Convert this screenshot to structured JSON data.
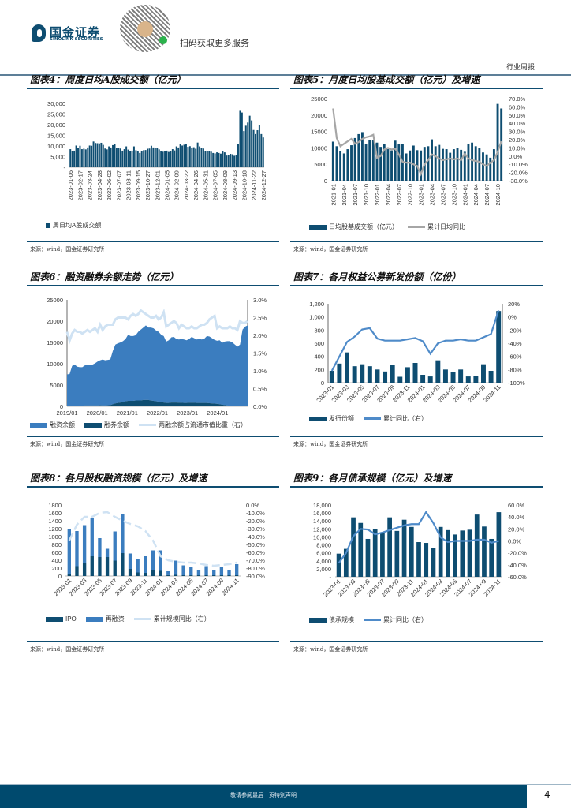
{
  "header": {
    "logo_cn": "国金证券",
    "logo_en": "SINOLINK SECURITIES",
    "qr_caption": "扫码获取更多服务",
    "report_type": "行业周报"
  },
  "footer": {
    "disclaimer": "敬请参阅最后一页特别声明",
    "page": "4"
  },
  "colors": {
    "dark_blue": "#0e4d71",
    "mid_blue": "#3b7dbf",
    "light_blue": "#cfe2f3",
    "grey": "#a6a6a6",
    "line_blue": "#4f8bc9"
  },
  "chart_data": [
    {
      "id": "fig4",
      "title": "图表4：周度日均A股成交额（亿元）",
      "source": "来源：wind，国金证券研究所",
      "type": "bar",
      "y_ticks": [
        "-",
        "5,000",
        "10,000",
        "15,000",
        "20,000",
        "25,000",
        "30,000"
      ],
      "ylim": [
        0,
        30000
      ],
      "x_tick_labels": [
        "2023-01-06",
        "2023-02-17",
        "2023-03-24",
        "2023-04-28",
        "2023-06-02",
        "2023-07-07",
        "2023-08-11",
        "2023-09-15",
        "2023-10-27",
        "2023-12-01",
        "2024-01-05",
        "2024-02-09",
        "2024-03-22",
        "2024-04-26",
        "2024-05-31",
        "2024-07-05",
        "2024-08-09",
        "2024-09-13",
        "2024-10-18",
        "2024-11-22",
        "2024-12-27"
      ],
      "series": [
        {
          "name": "周日均A股成交额",
          "values": [
            8500,
            7600,
            7800,
            10200,
            8900,
            10100,
            8500,
            8700,
            8400,
            9300,
            10200,
            10100,
            12100,
            11400,
            11300,
            11200,
            11500,
            10500,
            8800,
            8400,
            9800,
            9300,
            10400,
            10800,
            9200,
            9100,
            8800,
            7800,
            8500,
            9800,
            8300,
            7500,
            7800,
            9800,
            8000,
            7400,
            6700,
            7500,
            8000,
            8100,
            8700,
            8800,
            10100,
            9300,
            9000,
            8900,
            8400,
            7600,
            7300,
            7500,
            7800,
            7200,
            7500,
            8500,
            7900,
            9800,
            9300,
            11000,
            10200,
            10600,
            11100,
            9600,
            9900,
            8900,
            9400,
            8700,
            11600,
            9800,
            9100,
            8800,
            7500,
            7600,
            7700,
            7300,
            6700,
            6500,
            7000,
            6700,
            6400,
            7400,
            7000,
            5500,
            5700,
            6300,
            6100,
            5400,
            5800,
            10900,
            26500,
            25700,
            17000,
            19500,
            21000,
            24200,
            22000,
            17500,
            15600,
            17400,
            19800,
            15600,
            14000
          ]
        }
      ]
    },
    {
      "id": "fig5",
      "title": "图表5：月度日均股基成交额（亿元）及增速",
      "source": "来源：wind，国金证券研究所",
      "type": "bar+line",
      "y_ticks": [
        "0",
        "5000",
        "10000",
        "15000",
        "20000",
        "25000"
      ],
      "ylim": [
        0,
        25000
      ],
      "y2_ticks": [
        "-30.0%",
        "-20.0%",
        "-10.0%",
        "0.0%",
        "10.0%",
        "20.0%",
        "30.0%",
        "40.0%",
        "50.0%",
        "60.0%",
        "70.0%"
      ],
      "y2lim": [
        -30,
        70
      ],
      "x_tick_labels": [
        "2021-01",
        "2021-04",
        "2021-07",
        "2021-10",
        "2022-01",
        "2022-04",
        "2022-07",
        "2022-10",
        "2023-01",
        "2023-04",
        "2023-07",
        "2023-10",
        "2024-01",
        "2024-04",
        "2024-07",
        "2024-10"
      ],
      "x_tick_every": 3,
      "series": [
        {
          "name": "日均股基成交额（亿元）",
          "axis": "left",
          "values": [
            11900,
            10500,
            9000,
            8300,
            9600,
            10800,
            13000,
            14200,
            14800,
            11100,
            12300,
            12300,
            11600,
            10300,
            11200,
            9600,
            9200,
            12200,
            11200,
            11200,
            8300,
            9200,
            10700,
            9300,
            9200,
            10300,
            10500,
            12600,
            10500,
            10900,
            9700,
            9600,
            8500,
            9600,
            10000,
            9400,
            8800,
            11300,
            11600,
            10500,
            9900,
            8600,
            8000,
            7000,
            9600,
            23400,
            22000
          ]
        },
        {
          "name": "累计日均同比",
          "axis": "right",
          "values": [
            58,
            22,
            12,
            15,
            18,
            21,
            15,
            17,
            21,
            23,
            24,
            26,
            -2,
            0,
            8,
            10,
            8,
            9,
            2,
            -7,
            -8,
            -8,
            -10,
            -12,
            -22,
            -10,
            -5,
            2,
            0,
            -3,
            -5,
            -4,
            -3,
            -4,
            -3,
            -5,
            3,
            -3,
            -5,
            -6,
            -7,
            -10,
            -12,
            -8,
            -5,
            5,
            18
          ]
        }
      ]
    },
    {
      "id": "fig6",
      "title": "图表6：融资融券余额走势（亿元）",
      "source": "来源：wind，国金证券研究所",
      "type": "area+line",
      "y_ticks": [
        "0",
        "5000",
        "10000",
        "15000",
        "20000",
        "25000"
      ],
      "ylim": [
        0,
        25000
      ],
      "y2_ticks": [
        "0.0%",
        "0.5%",
        "1.0%",
        "1.5%",
        "2.0%",
        "2.5%",
        "3.0%"
      ],
      "y2lim": [
        0,
        3
      ],
      "x_tick_labels": [
        "2019/01",
        "2020/01",
        "2021/01",
        "2022/01",
        "2023/01",
        "2024/01"
      ],
      "x_tick_every": 12,
      "series": [
        {
          "name": "融资余额",
          "axis": "left",
          "values": [
            7400,
            7500,
            9350,
            9650,
            9150,
            9050,
            9050,
            9400,
            9500,
            9500,
            9600,
            9900,
            10300,
            10550,
            10800,
            10600,
            10650,
            10700,
            12500,
            13800,
            14000,
            14100,
            14300,
            14600,
            15500,
            15200,
            15200,
            15300,
            16100,
            16600,
            17000,
            17500,
            17000,
            17100,
            17000,
            16600,
            16400,
            15800,
            15600,
            14400,
            14700,
            15300,
            15400,
            14900,
            14850,
            14950,
            14900,
            14700,
            14950,
            15450,
            15150,
            14900,
            15000,
            14900,
            15100,
            15700,
            15650,
            15300,
            14950,
            14800,
            15000,
            14500,
            14900,
            15100,
            15150,
            14880,
            14400,
            13920,
            14440,
            17940,
            18640,
            18940
          ]
        },
        {
          "name": "融券余额",
          "axis": "left",
          "values": [
            100,
            100,
            150,
            150,
            150,
            150,
            150,
            200,
            200,
            200,
            200,
            200,
            200,
            250,
            200,
            200,
            250,
            300,
            500,
            700,
            800,
            900,
            1000,
            1200,
            1300,
            1300,
            1300,
            1400,
            1400,
            1400,
            1500,
            1500,
            1500,
            1400,
            1300,
            1200,
            1100,
            1000,
            900,
            800,
            800,
            900,
            900,
            900,
            850,
            850,
            800,
            800,
            850,
            850,
            850,
            800,
            800,
            800,
            800,
            800,
            750,
            700,
            650,
            600,
            500,
            400,
            300,
            200,
            150,
            120,
            100,
            80,
            60,
            60,
            60,
            60
          ]
        },
        {
          "name": "两融余额占流通市值比重（右）",
          "axis": "right",
          "values": [
            2.1,
            1.85,
            2.05,
            2.15,
            2.1,
            2.1,
            2.05,
            2.1,
            2.15,
            2.1,
            2.15,
            2.2,
            2.1,
            2.3,
            2.15,
            2.25,
            2.3,
            2.3,
            2.3,
            2.45,
            2.5,
            2.5,
            2.5,
            2.5,
            2.45,
            2.55,
            2.6,
            2.55,
            2.6,
            2.7,
            2.65,
            2.6,
            2.55,
            2.5,
            2.5,
            2.55,
            2.45,
            2.5,
            2.65,
            2.25,
            2.3,
            2.35,
            2.4,
            2.35,
            2.2,
            2.3,
            2.25,
            2.2,
            2.2,
            2.25,
            2.2,
            2.2,
            2.25,
            2.3,
            2.3,
            2.35,
            2.45,
            2.5,
            2.55,
            2.2,
            2.25,
            2.2,
            2.2,
            2.2,
            2.25,
            2.2,
            2.2,
            2.15,
            2.4,
            2.35,
            2.35,
            2.4
          ]
        }
      ]
    },
    {
      "id": "fig7",
      "title": "图表7：各月权益公募新发份额（亿份）",
      "source": "来源：wind，国金证券研究所",
      "type": "bar+line",
      "y_ticks": [
        "0",
        "200",
        "400",
        "600",
        "800",
        "1,000",
        "1,200"
      ],
      "ylim": [
        0,
        1200
      ],
      "y2_ticks": [
        "-100%",
        "-80%",
        "-60%",
        "-40%",
        "-20%",
        "0%",
        "20%"
      ],
      "y2lim": [
        -100,
        20
      ],
      "x_tick_labels": [
        "2023-01",
        "2023-03",
        "2023-05",
        "2023-07",
        "2023-09",
        "2023-11",
        "2024-01",
        "2024-03",
        "2024-05",
        "2024-07",
        "2024-09",
        "2024-11"
      ],
      "x_tick_every": 2,
      "series": [
        {
          "name": "发行份额",
          "axis": "left",
          "values": [
            180,
            290,
            460,
            250,
            280,
            250,
            200,
            170,
            270,
            90,
            235,
            300,
            120,
            95,
            340,
            200,
            160,
            200,
            95,
            100,
            280,
            180,
            1090
          ]
        },
        {
          "name": "累计同比（右）",
          "axis": "right",
          "values": [
            -82,
            -60,
            -38,
            -30,
            -19,
            -17,
            -33,
            -36,
            -36,
            -36,
            -34,
            -32,
            -37,
            -56,
            -40,
            -36,
            -36,
            -34,
            -36,
            -36,
            -31,
            -26,
            10
          ]
        }
      ]
    },
    {
      "id": "fig8",
      "title": "图表8：各月股权融资规模（亿元）及增速",
      "source": "来源：wind，国金证券研究所",
      "type": "stacked-bar+line",
      "y_ticks": [
        "0",
        "200",
        "400",
        "600",
        "800",
        "1000",
        "1200",
        "1400",
        "1600",
        "1800"
      ],
      "ylim": [
        0,
        1800
      ],
      "y2_ticks": [
        "-90.0%",
        "-80.0%",
        "-70.0%",
        "-60.0%",
        "-50.0%",
        "-40.0%",
        "-30.0%",
        "-20.0%",
        "-10.0%",
        "0.0%"
      ],
      "y2lim": [
        -90,
        0
      ],
      "x_tick_labels": [
        "2023-01",
        "2023-03",
        "2023-05",
        "2023-07",
        "2023-09",
        "2023-11",
        "2024-01",
        "2024-03",
        "2024-05",
        "2024-07",
        "2024-09",
        "2024-11"
      ],
      "x_tick_every": 2,
      "series": [
        {
          "name": "IPO",
          "axis": "left",
          "values": [
            60,
            250,
            330,
            500,
            480,
            480,
            390,
            580,
            180,
            90,
            80,
            150,
            130,
            25,
            30,
            20,
            20,
            20,
            20,
            20,
            20,
            20,
            20
          ]
        },
        {
          "name": "再融资",
          "axis": "left",
          "values": [
            1140,
            890,
            960,
            980,
            480,
            210,
            740,
            990,
            390,
            340,
            420,
            500,
            520,
            95,
            360,
            250,
            210,
            140,
            230,
            140,
            200,
            140,
            280
          ]
        },
        {
          "name": "累计规模同比（右）",
          "axis": "right",
          "values": [
            -45,
            -25,
            -15,
            -15,
            -10,
            -9,
            -15,
            -20,
            -24,
            -27,
            -33,
            -45,
            -65,
            -70,
            -72,
            -73,
            -73,
            -74,
            -76,
            -77,
            -76,
            -75,
            -73
          ]
        }
      ]
    },
    {
      "id": "fig9",
      "title": "图表9：各月债承规模（亿元）及增速",
      "source": "来源：wind，国金证券研究所",
      "type": "bar+line",
      "y_ticks": [
        "-",
        "2,000",
        "4,000",
        "6,000",
        "8,000",
        "10,000",
        "12,000",
        "14,000",
        "16,000",
        "18,000"
      ],
      "ylim": [
        0,
        18000
      ],
      "y2_ticks": [
        "-60.0%",
        "-40.0%",
        "-20.0%",
        "0.0%",
        "20.0%",
        "40.0%",
        "60.0%"
      ],
      "y2lim": [
        -60,
        60
      ],
      "x_tick_labels": [
        "2023-01",
        "2023-03",
        "2023-05",
        "2023-07",
        "2023-09",
        "2023-11",
        "2024-01",
        "2024-03",
        "2024-05",
        "2024-07",
        "2024-09",
        "2024-11"
      ],
      "x_tick_every": 2,
      "series": [
        {
          "name": "债承规模",
          "axis": "left",
          "values": [
            5800,
            7000,
            14900,
            13500,
            9500,
            12000,
            11000,
            14900,
            11500,
            14300,
            12500,
            8700,
            8500,
            7300,
            12500,
            11700,
            10600,
            11600,
            11800,
            15600,
            12600,
            9500,
            16200
          ]
        },
        {
          "name": "累计同比（右）",
          "axis": "right",
          "values": [
            -37,
            -20,
            8,
            20,
            19,
            11,
            14,
            18,
            22,
            26,
            28,
            28,
            48,
            30,
            6,
            -2,
            0,
            0,
            0,
            2,
            2,
            -3,
            0
          ]
        }
      ]
    }
  ]
}
